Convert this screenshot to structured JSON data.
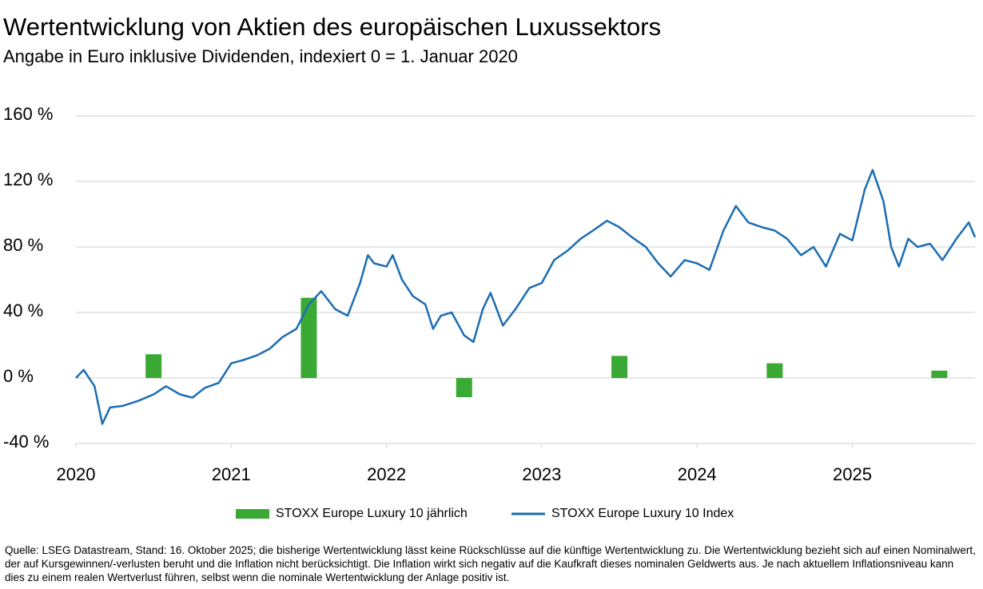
{
  "chart_data": {
    "type": "bar-line",
    "title": "Wertentwicklung von Aktien des europäischen Luxussektors",
    "subtitle": "Angabe in Euro inklusive Dividenden, indexiert 0 = 1. Januar 2020",
    "xlim": [
      2020,
      2025.79
    ],
    "xticks": [
      2020,
      2021,
      2022,
      2023,
      2024,
      2025
    ],
    "ylim": [
      -40,
      160
    ],
    "yticks": [
      {
        "value": -40,
        "label": "-40 %"
      },
      {
        "value": 0,
        "label": "0 %"
      },
      {
        "value": 40,
        "label": "40 %"
      },
      {
        "value": 80,
        "label": "80 %"
      },
      {
        "value": 120,
        "label": "120 %"
      },
      {
        "value": 160,
        "label": "160 %"
      }
    ],
    "grid": true,
    "series": [
      {
        "name": "STOXX Europe Luxury 10 jährlich",
        "type": "bar",
        "color": "#3aaa35",
        "x": [
          2020.5,
          2021.5,
          2022.5,
          2023.5,
          2024.5,
          2025.56
        ],
        "values": [
          14.5,
          49,
          -11.7,
          13.5,
          9,
          4.5
        ]
      },
      {
        "name": "STOXX Europe Luxury 10 Index",
        "type": "line",
        "color": "#1b6db3",
        "x": [
          2020.0,
          2020.05,
          2020.12,
          2020.17,
          2020.22,
          2020.3,
          2020.4,
          2020.5,
          2020.58,
          2020.67,
          2020.75,
          2020.83,
          2020.92,
          2021.0,
          2021.08,
          2021.17,
          2021.25,
          2021.33,
          2021.42,
          2021.5,
          2021.58,
          2021.67,
          2021.75,
          2021.83,
          2021.88,
          2021.92,
          2022.0,
          2022.04,
          2022.1,
          2022.17,
          2022.25,
          2022.3,
          2022.35,
          2022.42,
          2022.5,
          2022.56,
          2022.62,
          2022.67,
          2022.75,
          2022.83,
          2022.92,
          2023.0,
          2023.08,
          2023.17,
          2023.25,
          2023.33,
          2023.42,
          2023.5,
          2023.58,
          2023.67,
          2023.75,
          2023.83,
          2023.92,
          2024.0,
          2024.08,
          2024.17,
          2024.25,
          2024.33,
          2024.42,
          2024.5,
          2024.58,
          2024.67,
          2024.75,
          2024.83,
          2024.92,
          2025.0,
          2025.08,
          2025.13,
          2025.2,
          2025.25,
          2025.3,
          2025.36,
          2025.42,
          2025.5,
          2025.58,
          2025.67,
          2025.75,
          2025.79
        ],
        "values": [
          0,
          5,
          -5,
          -28,
          -18,
          -17,
          -14,
          -10,
          -5,
          -10,
          -12,
          -6,
          -3,
          9,
          11,
          14,
          18,
          25,
          30,
          45,
          53,
          42,
          38,
          58,
          75,
          70,
          68,
          75,
          60,
          50,
          45,
          30,
          38,
          40,
          26,
          22,
          42,
          52,
          32,
          42,
          55,
          58,
          72,
          78,
          85,
          90,
          96,
          92,
          86,
          80,
          70,
          62,
          72,
          70,
          66,
          90,
          105,
          95,
          92,
          90,
          85,
          75,
          80,
          68,
          88,
          84,
          115,
          127,
          108,
          80,
          68,
          85,
          80,
          82,
          72,
          85,
          95,
          86
        ]
      }
    ],
    "source": "Quelle: LSEG Datastream, Stand: 16. Oktober 2025; die bisherige Wertentwicklung lässt keine Rückschlüsse auf die künftige Wertentwicklung zu. Die Wertentwicklung bezieht sich auf einen Nominalwert, der auf Kursgewinnen/-verlusten beruht und die Inflation nicht berücksichtigt. Die Inflation wirkt sich negativ auf die Kaufkraft dieses nominalen Geldwerts aus. Je nach aktuellem Inflationsniveau kann dies zu einem realen Wertverlust führen, selbst wenn die nominale Wertentwicklung der Anlage positiv ist."
  }
}
